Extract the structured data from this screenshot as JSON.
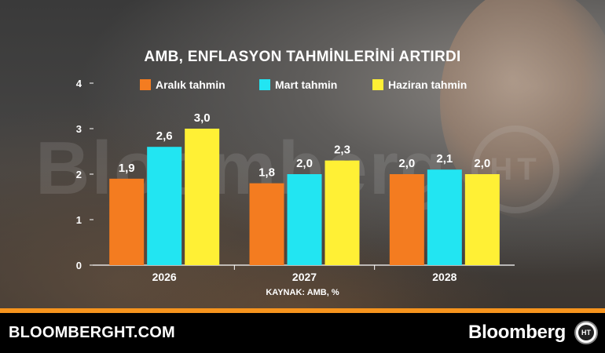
{
  "background": {
    "watermark_text": "Bloomberg",
    "watermark_badge": "HT"
  },
  "chart_data": {
    "type": "bar",
    "title": "AMB, ENFLASYON TAHMİNLERİNİ ARTIRDI",
    "categories": [
      "2026",
      "2027",
      "2028"
    ],
    "series": [
      {
        "name": "Aralık tahmin",
        "color": "#f47c20",
        "values": [
          1.9,
          1.8,
          2.0
        ],
        "labels": [
          "1,9",
          "1,8",
          "2,0"
        ]
      },
      {
        "name": "Mart tahmin",
        "color": "#22e5f2",
        "values": [
          2.6,
          2.0,
          2.1
        ],
        "labels": [
          "2,6",
          "2,0",
          "2,1"
        ]
      },
      {
        "name": "Haziran tahmin",
        "color": "#fff035",
        "values": [
          3.0,
          2.3,
          2.0
        ],
        "labels": [
          "3,0",
          "2,3",
          "2,0"
        ]
      }
    ],
    "ylim": [
      0,
      4
    ],
    "yticks": [
      "0",
      "1",
      "2",
      "3",
      "4"
    ],
    "grid": false,
    "legend_position": "top",
    "source": "KAYNAK: AMB, %"
  },
  "footer": {
    "site": "BLOOMBERGHT.COM",
    "brand": "Bloomberg",
    "logo_text": "HT",
    "accent_color": "#f7941d"
  }
}
